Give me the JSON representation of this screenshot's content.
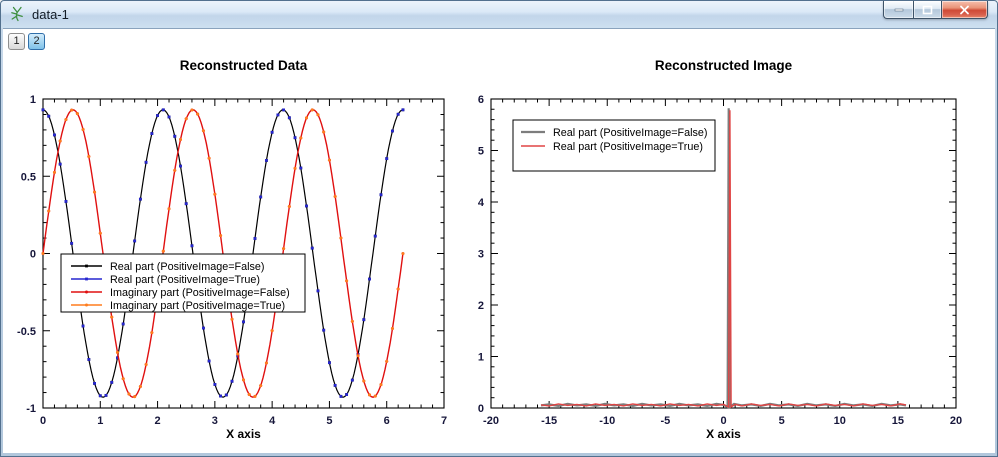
{
  "window": {
    "title": "data-1",
    "icon_name": "mantis-icon",
    "controls": {
      "minimize": "minimize",
      "maximize": "maximize",
      "close": "close"
    }
  },
  "pager": {
    "buttons": [
      {
        "label": "1",
        "active": false
      },
      {
        "label": "2",
        "active": true
      }
    ]
  },
  "colors": {
    "real_false": "#000000",
    "real_true": "#2626cf",
    "imag_false": "#e01010",
    "imag_true": "#ff7d1e",
    "image_real_false": "#7d7d7d",
    "image_real_true": "#e04545",
    "tab_active": "#7fc2e9",
    "close_button": "#cf4a36"
  },
  "chart_data": [
    {
      "id": "reconstructed-data",
      "type": "line",
      "title": "Reconstructed Data",
      "xlabel": "X axis",
      "ylabel": "",
      "xlim": [
        0,
        7
      ],
      "ylim": [
        -1,
        1
      ],
      "x_major": 1,
      "x_minor": 0.2,
      "y_major": 0.5,
      "y_minor": 0.1,
      "x_tick_labels": [
        "0",
        "1",
        "2",
        "3",
        "4",
        "5",
        "6",
        "7"
      ],
      "y_tick_labels": [
        "-1",
        "-0.5",
        "0",
        "0.5",
        "1"
      ],
      "grid": false,
      "legend_position": "inside-middle-left",
      "series": [
        {
          "name": "Real part (PositiveImage=False)",
          "color": "#000000",
          "lw": 1.2,
          "line": true,
          "marker": "square",
          "generator": {
            "kind": "sinusoid",
            "formula": "y = amp*cos(omega*x+phase)",
            "amp": 0.93,
            "omega": 3.0,
            "phase": 0,
            "x_start": 0,
            "x_end": 6.283,
            "step": 0.1
          }
        },
        {
          "name": "Real part (PositiveImage=True)",
          "color": "#2626cf",
          "lw": 1.2,
          "line": false,
          "marker": "square",
          "generator": {
            "kind": "sinusoid",
            "formula": "y = amp*cos(omega*x+phase)",
            "amp": 0.93,
            "omega": 3.0,
            "phase": 0,
            "x_start": 0,
            "x_end": 6.283,
            "step": 0.1
          }
        },
        {
          "name": "Imaginary part (PositiveImage=False)",
          "color": "#e01010",
          "lw": 1.4,
          "line": true,
          "marker": "circle",
          "generator": {
            "kind": "sinusoid",
            "formula": "y = amp*cos(omega*x+phase)",
            "amp": 0.93,
            "omega": 3.0,
            "phase": -1.5708,
            "x_start": 0,
            "x_end": 6.283,
            "step": 0.1
          }
        },
        {
          "name": "Imaginary part (PositiveImage=True)",
          "color": "#ff7d1e",
          "lw": 1.4,
          "line": false,
          "marker": "circle",
          "generator": {
            "kind": "sinusoid",
            "formula": "y = amp*cos(omega*x+phase)",
            "amp": 0.93,
            "omega": 3.0,
            "phase": -1.5708,
            "x_start": 0,
            "x_end": 6.283,
            "step": 0.1
          }
        }
      ]
    },
    {
      "id": "reconstructed-image",
      "type": "line",
      "title": "Reconstructed Image",
      "xlabel": "X axis",
      "ylabel": "",
      "xlim": [
        -20,
        20
      ],
      "ylim": [
        0,
        6
      ],
      "x_major": 5,
      "x_minor": 1,
      "y_major": 1,
      "y_minor": 0.2,
      "x_tick_labels": [
        "-20",
        "-15",
        "-10",
        "-5",
        "0",
        "5",
        "10",
        "15",
        "20"
      ],
      "y_tick_labels": [
        "0",
        "1",
        "2",
        "3",
        "4",
        "5",
        "6"
      ],
      "grid": false,
      "legend_position": "inside-top-left",
      "series": [
        {
          "name": "Real part (PositiveImage=False)",
          "color": "#7d7d7d",
          "lw": 2.2,
          "line": true,
          "marker": null,
          "points": [
            [
              -15.7,
              0.05
            ],
            [
              -15,
              0.07
            ],
            [
              -14.2,
              0.04
            ],
            [
              -13.4,
              0.08
            ],
            [
              -12.6,
              0.05
            ],
            [
              -11.8,
              0.07
            ],
            [
              -11,
              0.04
            ],
            [
              -10.2,
              0.08
            ],
            [
              -9.4,
              0.05
            ],
            [
              -8.6,
              0.07
            ],
            [
              -7.8,
              0.04
            ],
            [
              -7,
              0.08
            ],
            [
              -6.2,
              0.05
            ],
            [
              -5.4,
              0.07
            ],
            [
              -4.6,
              0.04
            ],
            [
              -3.8,
              0.08
            ],
            [
              -3,
              0.05
            ],
            [
              -2.2,
              0.07
            ],
            [
              -1.4,
              0.04
            ],
            [
              -0.6,
              0.08
            ],
            [
              0,
              0.06
            ],
            [
              0.35,
              0.02
            ],
            [
              0.45,
              5.82
            ],
            [
              0.55,
              0.02
            ],
            [
              0.9,
              0.08
            ],
            [
              1.6,
              0.05
            ],
            [
              2.4,
              0.07
            ],
            [
              3.2,
              0.04
            ],
            [
              4,
              0.08
            ],
            [
              4.8,
              0.05
            ],
            [
              5.6,
              0.07
            ],
            [
              6.4,
              0.04
            ],
            [
              7.2,
              0.08
            ],
            [
              8,
              0.05
            ],
            [
              8.8,
              0.07
            ],
            [
              9.6,
              0.04
            ],
            [
              10.4,
              0.08
            ],
            [
              11.2,
              0.05
            ],
            [
              12,
              0.07
            ],
            [
              12.8,
              0.04
            ],
            [
              13.6,
              0.08
            ],
            [
              14.4,
              0.05
            ],
            [
              15.2,
              0.07
            ],
            [
              15.7,
              0.05
            ]
          ]
        },
        {
          "name": "Real part (PositiveImage=True)",
          "color": "#e04545",
          "lw": 1.4,
          "line": true,
          "marker": null,
          "points": [
            [
              -15.7,
              0.06
            ],
            [
              -15,
              0.04
            ],
            [
              -14.2,
              0.08
            ],
            [
              -13.4,
              0.05
            ],
            [
              -12.6,
              0.07
            ],
            [
              -11.8,
              0.04
            ],
            [
              -11,
              0.08
            ],
            [
              -10.2,
              0.05
            ],
            [
              -9.4,
              0.07
            ],
            [
              -8.6,
              0.04
            ],
            [
              -7.8,
              0.08
            ],
            [
              -7,
              0.05
            ],
            [
              -6.2,
              0.07
            ],
            [
              -5.4,
              0.04
            ],
            [
              -4.6,
              0.08
            ],
            [
              -3.8,
              0.05
            ],
            [
              -3,
              0.07
            ],
            [
              -2.2,
              0.04
            ],
            [
              -1.4,
              0.08
            ],
            [
              -0.6,
              0.05
            ],
            [
              0,
              0.07
            ],
            [
              0.45,
              0.02
            ],
            [
              0.55,
              5.78
            ],
            [
              0.65,
              0.02
            ],
            [
              1,
              0.07
            ],
            [
              1.6,
              0.04
            ],
            [
              2.4,
              0.08
            ],
            [
              3.2,
              0.05
            ],
            [
              4,
              0.07
            ],
            [
              4.8,
              0.04
            ],
            [
              5.6,
              0.08
            ],
            [
              6.4,
              0.05
            ],
            [
              7.2,
              0.07
            ],
            [
              8,
              0.04
            ],
            [
              8.8,
              0.08
            ],
            [
              9.6,
              0.05
            ],
            [
              10.4,
              0.07
            ],
            [
              11.2,
              0.04
            ],
            [
              12,
              0.08
            ],
            [
              12.8,
              0.05
            ],
            [
              13.6,
              0.07
            ],
            [
              14.4,
              0.04
            ],
            [
              15.2,
              0.08
            ],
            [
              15.7,
              0.06
            ]
          ]
        }
      ]
    }
  ]
}
